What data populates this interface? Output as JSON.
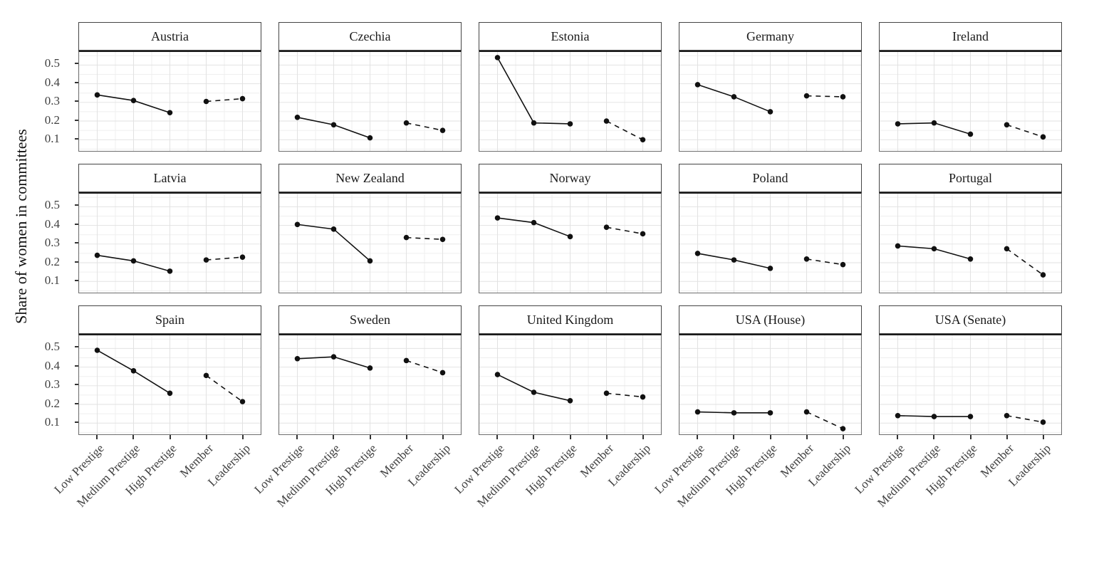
{
  "chart_data": {
    "type": "line",
    "faceted": true,
    "title": "",
    "ylabel": "Share of women in committees",
    "xlabel": "",
    "categories": [
      "Low Prestige",
      "Medium Prestige",
      "High Prestige",
      "Member",
      "Leadership"
    ],
    "line_segments": {
      "solid_indices": [
        0,
        1,
        2
      ],
      "dashed_indices": [
        3,
        4
      ]
    },
    "ytick_labels": [
      "0.5",
      "0.4",
      "0.3",
      "0.2",
      "0.1"
    ],
    "ytick_values": [
      0.5,
      0.4,
      0.3,
      0.2,
      0.1
    ],
    "ylim": [
      0.04,
      0.57
    ],
    "grid": "on",
    "legend": "none",
    "facets": [
      {
        "title": "Austria",
        "values": [
          0.34,
          0.31,
          0.245,
          0.305,
          0.32
        ]
      },
      {
        "title": "Czechia",
        "values": [
          0.22,
          0.18,
          0.11,
          0.19,
          0.15
        ]
      },
      {
        "title": "Estonia",
        "values": [
          0.54,
          0.19,
          0.185,
          0.2,
          0.1
        ]
      },
      {
        "title": "Germany",
        "values": [
          0.395,
          0.33,
          0.25,
          0.335,
          0.33
        ]
      },
      {
        "title": "Ireland",
        "values": [
          0.185,
          0.19,
          0.13,
          0.18,
          0.115
        ]
      },
      {
        "title": "Latvia",
        "values": [
          0.24,
          0.21,
          0.155,
          0.215,
          0.23
        ]
      },
      {
        "title": "New Zealand",
        "values": [
          0.405,
          0.38,
          0.21,
          0.335,
          0.325
        ]
      },
      {
        "title": "Norway",
        "values": [
          0.44,
          0.415,
          0.34,
          0.39,
          0.355
        ]
      },
      {
        "title": "Poland",
        "values": [
          0.25,
          0.215,
          0.17,
          0.22,
          0.19
        ]
      },
      {
        "title": "Portugal",
        "values": [
          0.29,
          0.275,
          0.22,
          0.275,
          0.135
        ]
      },
      {
        "title": "Spain",
        "values": [
          0.49,
          0.38,
          0.26,
          0.355,
          0.215
        ]
      },
      {
        "title": "Sweden",
        "values": [
          0.445,
          0.455,
          0.395,
          0.435,
          0.37
        ]
      },
      {
        "title": "United Kingdom",
        "values": [
          0.36,
          0.265,
          0.22,
          0.26,
          0.24
        ]
      },
      {
        "title": "USA (House)",
        "values": [
          0.16,
          0.155,
          0.155,
          0.16,
          0.07
        ]
      },
      {
        "title": "USA (Senate)",
        "values": [
          0.14,
          0.135,
          0.135,
          0.14,
          0.105
        ]
      }
    ],
    "colors": {
      "point": "#111111",
      "line": "#111111",
      "grid_major": "#e2e2e2",
      "grid_minor": "#efefef",
      "panel_border": "#6e6e6e",
      "panel_top_line": "#1a1a1a",
      "strip_border": "#444444",
      "strip_background": "#ffffff",
      "tick": "#333333",
      "tick_label": "#404040",
      "facet_title": "#1a1a1a"
    }
  }
}
